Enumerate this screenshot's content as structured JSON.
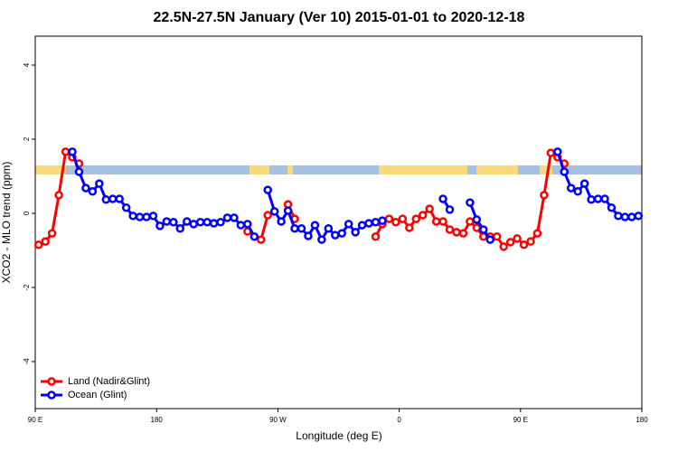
{
  "chart_data": {
    "type": "line",
    "title": "22.5N-27.5N January (Ver 10)   2015-01-01 to 2020-12-18",
    "x_label": "Longitude (deg E)",
    "y_label": "XCO2 - MLO trend (ppm)",
    "xlim": [
      90,
      540
    ],
    "ylim": [
      -5.27,
      4.78
    ],
    "xticks": [
      {
        "value": 90,
        "label": "90 E"
      },
      180,
      {
        "value": 270,
        "label": "90 W"
      },
      {
        "value": 360,
        "label": "0"
      },
      {
        "value": 450,
        "label": "90 E"
      },
      {
        "value": 540,
        "label": "180"
      }
    ],
    "yticks": [
      -4,
      -2,
      0,
      2,
      4
    ],
    "grid": false,
    "legend": "bottom-left",
    "series": [
      {
        "name": "Land (Nadir&Glint)",
        "color": "#ff0000",
        "x": [
          92.5,
          97.5,
          102.5,
          107.5,
          112.5,
          117.5,
          122.5,
          null,
          247.5,
          null,
          257.5,
          262.5,
          null,
          277.5,
          282.5,
          null,
          342.5,
          347.5,
          352.5,
          357.5,
          362.5,
          367.5,
          372.5,
          377.5,
          382.5,
          387.5,
          392.5,
          397.5,
          402.5,
          407.5,
          412.5,
          417.5,
          422.5,
          427.5,
          432.5,
          437.5,
          442.5,
          447.5,
          452.5,
          457.5,
          462.5,
          467.5,
          472.5,
          477.5,
          482.5
        ],
        "values": [
          -0.85,
          -0.76,
          -0.54,
          0.49,
          1.66,
          1.51,
          1.34,
          null,
          -0.49,
          null,
          -0.71,
          -0.05,
          null,
          0.24,
          -0.15,
          null,
          -0.63,
          -0.29,
          -0.15,
          -0.24,
          -0.15,
          -0.39,
          -0.15,
          -0.05,
          0.12,
          -0.22,
          -0.22,
          -0.44,
          -0.51,
          -0.54,
          -0.22,
          -0.39,
          -0.63,
          -0.63,
          -0.63,
          -0.9,
          -0.78,
          -0.68,
          -0.85,
          -0.76,
          -0.54,
          0.49,
          1.63,
          1.51,
          1.34
        ]
      },
      {
        "name": "Ocean (Glint)",
        "color": "#0000ff",
        "x": [
          117.5,
          122.5,
          127.5,
          132.5,
          137.5,
          142.5,
          147.5,
          152.5,
          157.5,
          162.5,
          167.5,
          172.5,
          177.5,
          182.5,
          187.5,
          192.5,
          197.5,
          202.5,
          207.5,
          212.5,
          217.5,
          222.5,
          227.5,
          232.5,
          237.5,
          242.5,
          247.5,
          252.5,
          null,
          262.5,
          267.5,
          272.5,
          277.5,
          282.5,
          287.5,
          292.5,
          297.5,
          302.5,
          307.5,
          312.5,
          317.5,
          322.5,
          327.5,
          332.5,
          337.5,
          342.5,
          347.5,
          null,
          392.5,
          397.5,
          null,
          412.5,
          417.5,
          422.5,
          427.5,
          null,
          477.5,
          482.5,
          487.5,
          492.5,
          497.5,
          502.5,
          507.5,
          512.5,
          517.5,
          522.5,
          527.5,
          532.5,
          537.5
        ],
        "values": [
          1.66,
          1.12,
          0.68,
          0.59,
          0.8,
          0.37,
          0.39,
          0.39,
          0.15,
          -0.07,
          -0.1,
          -0.1,
          -0.07,
          -0.34,
          -0.22,
          -0.24,
          -0.41,
          -0.22,
          -0.29,
          -0.24,
          -0.24,
          -0.27,
          -0.24,
          -0.12,
          -0.12,
          -0.32,
          -0.29,
          -0.63,
          null,
          0.63,
          0.05,
          -0.22,
          0.07,
          -0.41,
          -0.41,
          -0.61,
          -0.32,
          -0.71,
          -0.41,
          -0.59,
          -0.54,
          -0.29,
          -0.51,
          -0.32,
          -0.27,
          -0.24,
          -0.2,
          null,
          0.39,
          0.1,
          null,
          0.29,
          -0.17,
          -0.44,
          -0.71,
          null,
          1.66,
          1.12,
          0.68,
          0.59,
          0.8,
          0.37,
          0.39,
          0.39,
          0.15,
          -0.07,
          -0.1,
          -0.1,
          -0.07
        ]
      }
    ]
  }
}
